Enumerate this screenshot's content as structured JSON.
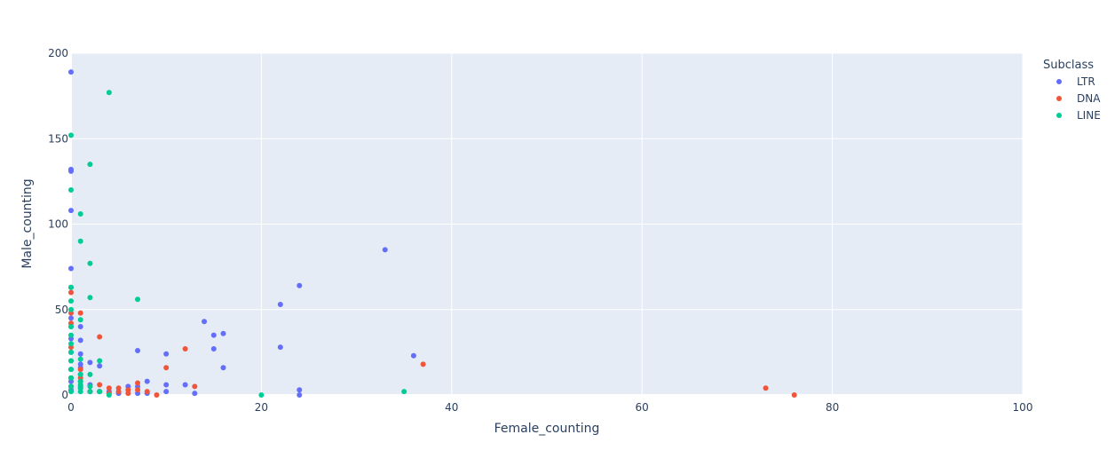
{
  "chart_data": {
    "type": "scatter",
    "xlabel": "Female_counting",
    "ylabel": "Male_counting",
    "xlim": [
      0,
      100
    ],
    "ylim": [
      0,
      200
    ],
    "x_ticks": [
      0,
      20,
      40,
      60,
      80,
      100
    ],
    "y_ticks": [
      0,
      50,
      100,
      150,
      200
    ],
    "grid": true,
    "plot_background": "#e5ecf6",
    "legend_title": "Subclass",
    "legend_position": "top-right",
    "series": [
      {
        "name": "LTR",
        "color": "#636efa",
        "points": [
          [
            0,
            189
          ],
          [
            0,
            132
          ],
          [
            0,
            131
          ],
          [
            0,
            108
          ],
          [
            0,
            74
          ],
          [
            0,
            63
          ],
          [
            0,
            45
          ],
          [
            0,
            40
          ],
          [
            0,
            33
          ],
          [
            0,
            25
          ],
          [
            0,
            15
          ],
          [
            0,
            8
          ],
          [
            0,
            3
          ],
          [
            1,
            40
          ],
          [
            1,
            32
          ],
          [
            1,
            24
          ],
          [
            1,
            18
          ],
          [
            1,
            16
          ],
          [
            1,
            12
          ],
          [
            1,
            5
          ],
          [
            2,
            19
          ],
          [
            2,
            6
          ],
          [
            2,
            2
          ],
          [
            3,
            17
          ],
          [
            3,
            2
          ],
          [
            4,
            2
          ],
          [
            5,
            1
          ],
          [
            6,
            5
          ],
          [
            7,
            26
          ],
          [
            7,
            5
          ],
          [
            7,
            1
          ],
          [
            8,
            8
          ],
          [
            8,
            1
          ],
          [
            10,
            24
          ],
          [
            10,
            6
          ],
          [
            10,
            2
          ],
          [
            12,
            6
          ],
          [
            13,
            1
          ],
          [
            14,
            43
          ],
          [
            15,
            35
          ],
          [
            15,
            27
          ],
          [
            16,
            36
          ],
          [
            16,
            16
          ],
          [
            22,
            53
          ],
          [
            22,
            28
          ],
          [
            24,
            64
          ],
          [
            24,
            3
          ],
          [
            24,
            0
          ],
          [
            33,
            85
          ],
          [
            36,
            23
          ]
        ]
      },
      {
        "name": "DNA",
        "color": "#ef553b",
        "points": [
          [
            0,
            60
          ],
          [
            0,
            48
          ],
          [
            0,
            42
          ],
          [
            0,
            28
          ],
          [
            0,
            20
          ],
          [
            0,
            10
          ],
          [
            0,
            5
          ],
          [
            1,
            48
          ],
          [
            1,
            15
          ],
          [
            1,
            10
          ],
          [
            1,
            8
          ],
          [
            1,
            4
          ],
          [
            2,
            2
          ],
          [
            3,
            34
          ],
          [
            3,
            6
          ],
          [
            3,
            2
          ],
          [
            4,
            4
          ],
          [
            4,
            1
          ],
          [
            5,
            4
          ],
          [
            5,
            2
          ],
          [
            6,
            3
          ],
          [
            6,
            1
          ],
          [
            7,
            7
          ],
          [
            7,
            3
          ],
          [
            8,
            2
          ],
          [
            9,
            0
          ],
          [
            10,
            16
          ],
          [
            12,
            27
          ],
          [
            13,
            5
          ],
          [
            37,
            18
          ],
          [
            73,
            4
          ],
          [
            76,
            0
          ]
        ]
      },
      {
        "name": "LINE",
        "color": "#00cc96",
        "points": [
          [
            0,
            152
          ],
          [
            0,
            120
          ],
          [
            0,
            63
          ],
          [
            0,
            55
          ],
          [
            0,
            50
          ],
          [
            0,
            40
          ],
          [
            0,
            35
          ],
          [
            0,
            30
          ],
          [
            0,
            25
          ],
          [
            0,
            20
          ],
          [
            0,
            15
          ],
          [
            0,
            10
          ],
          [
            0,
            5
          ],
          [
            0,
            2
          ],
          [
            1,
            106
          ],
          [
            1,
            90
          ],
          [
            1,
            44
          ],
          [
            1,
            21
          ],
          [
            1,
            12
          ],
          [
            1,
            8
          ],
          [
            1,
            6
          ],
          [
            1,
            4
          ],
          [
            1,
            2
          ],
          [
            2,
            135
          ],
          [
            2,
            77
          ],
          [
            2,
            57
          ],
          [
            2,
            12
          ],
          [
            2,
            5
          ],
          [
            2,
            2
          ],
          [
            3,
            20
          ],
          [
            3,
            2
          ],
          [
            4,
            177
          ],
          [
            4,
            0
          ],
          [
            7,
            56
          ],
          [
            20,
            0
          ],
          [
            35,
            2
          ]
        ]
      }
    ]
  }
}
